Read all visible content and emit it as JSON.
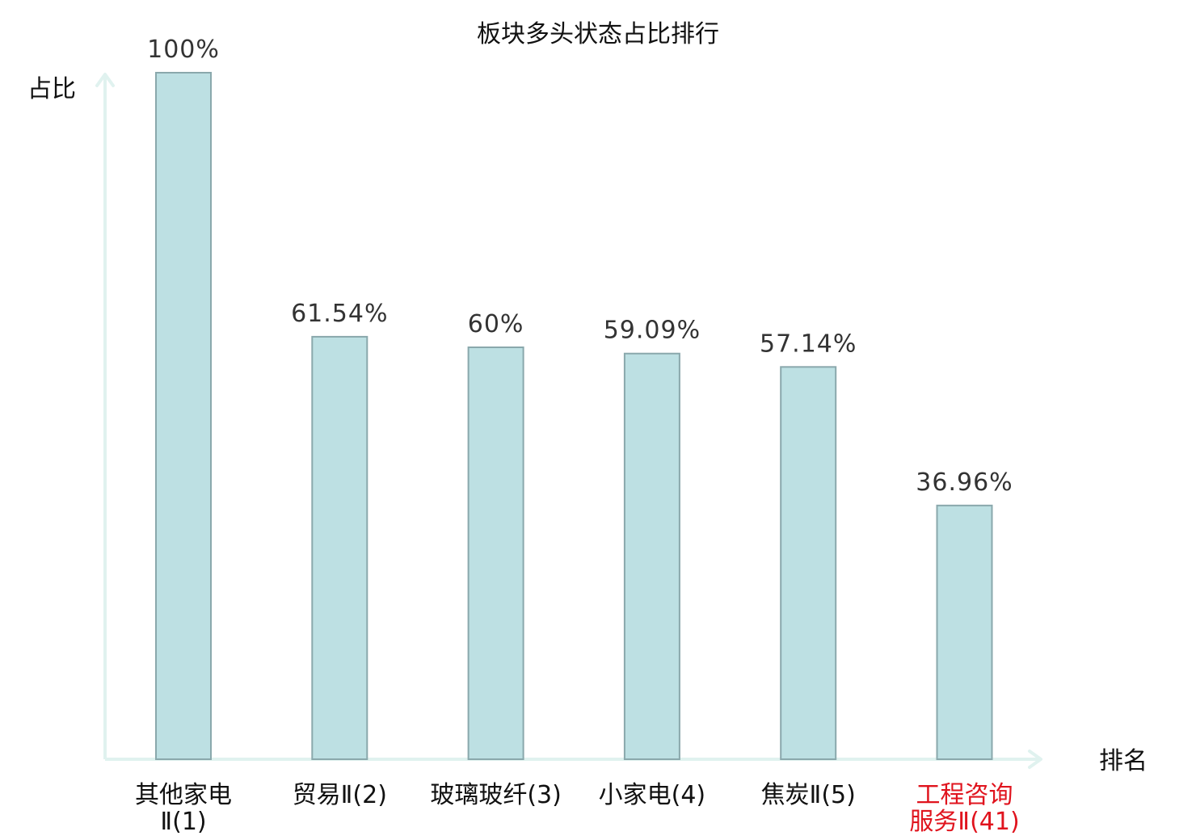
{
  "chart_data": {
    "type": "bar",
    "title": "板块多头状态占比排行",
    "ylabel": "占比",
    "xlabel": "排名",
    "categories": [
      [
        "其他家电",
        "Ⅱ(1)"
      ],
      [
        "贸易Ⅱ(2)"
      ],
      [
        "玻璃玻纤(3)"
      ],
      [
        "小家电(4)"
      ],
      [
        "焦炭Ⅱ(5)"
      ],
      [
        "工程咨询",
        "服务Ⅱ(41)"
      ]
    ],
    "values": [
      100,
      61.54,
      60,
      59.09,
      57.14,
      36.96
    ],
    "value_labels": [
      "100%",
      "61.54%",
      "60%",
      "59.09%",
      "57.14%",
      "36.96%"
    ],
    "highlighted": [
      false,
      false,
      false,
      false,
      false,
      true
    ],
    "ylim": [
      0,
      100
    ],
    "grid": false,
    "colors": {
      "bar_fill": "#bde0e3",
      "bar_stroke": "#8aa8ac",
      "axis": "#e0f2ef",
      "label_default": "#111111",
      "label_highlight": "#e0141e"
    }
  }
}
